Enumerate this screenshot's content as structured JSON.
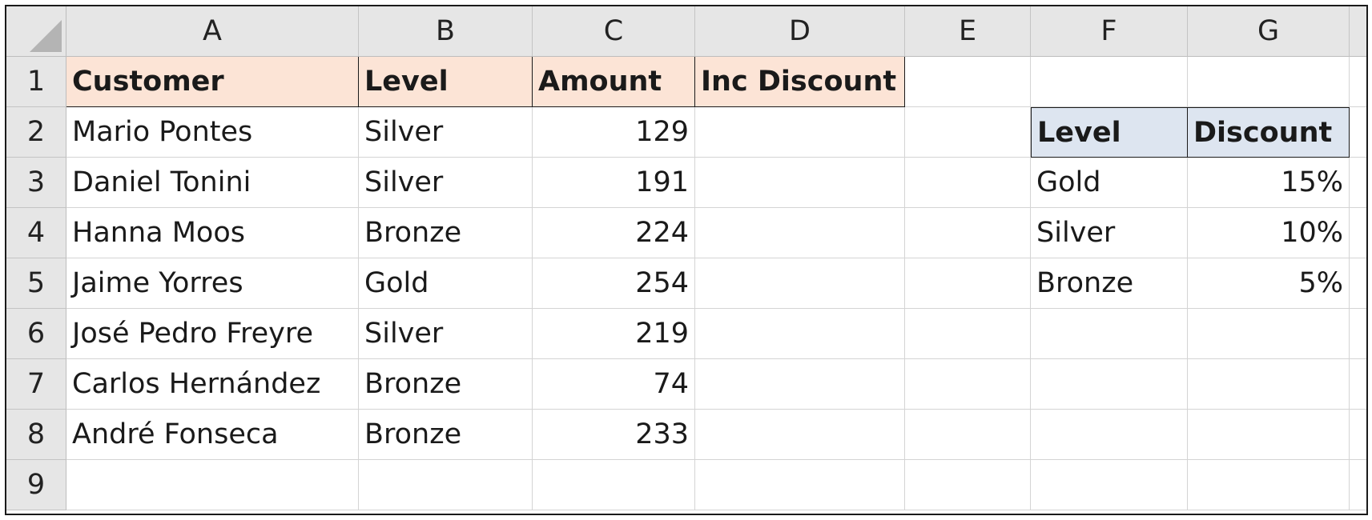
{
  "columns": [
    "A",
    "B",
    "C",
    "D",
    "E",
    "F",
    "G"
  ],
  "rows": [
    "1",
    "2",
    "3",
    "4",
    "5",
    "6",
    "7",
    "8",
    "9"
  ],
  "main_table": {
    "headers": [
      "Customer",
      "Level",
      "Amount",
      "Inc Discount"
    ],
    "rows": [
      {
        "customer": "Mario Pontes",
        "level": "Silver",
        "amount": "129",
        "inc_discount": ""
      },
      {
        "customer": "Daniel Tonini",
        "level": "Silver",
        "amount": "191",
        "inc_discount": ""
      },
      {
        "customer": "Hanna Moos",
        "level": "Bronze",
        "amount": "224",
        "inc_discount": ""
      },
      {
        "customer": "Jaime Yorres",
        "level": "Gold",
        "amount": "254",
        "inc_discount": ""
      },
      {
        "customer": "José Pedro Freyre",
        "level": "Silver",
        "amount": "219",
        "inc_discount": ""
      },
      {
        "customer": "Carlos Hernández",
        "level": "Bronze",
        "amount": "74",
        "inc_discount": ""
      },
      {
        "customer": "André Fonseca",
        "level": "Bronze",
        "amount": "233",
        "inc_discount": ""
      }
    ]
  },
  "lookup_table": {
    "headers": [
      "Level",
      "Discount"
    ],
    "rows": [
      {
        "level": "Gold",
        "discount": "15%"
      },
      {
        "level": "Silver",
        "discount": "10%"
      },
      {
        "level": "Bronze",
        "discount": "5%"
      }
    ]
  },
  "colors": {
    "main_header_fill": "#fce4d6",
    "lookup_header_fill": "#dde5f0",
    "heading_fill": "#e6e6e6"
  }
}
